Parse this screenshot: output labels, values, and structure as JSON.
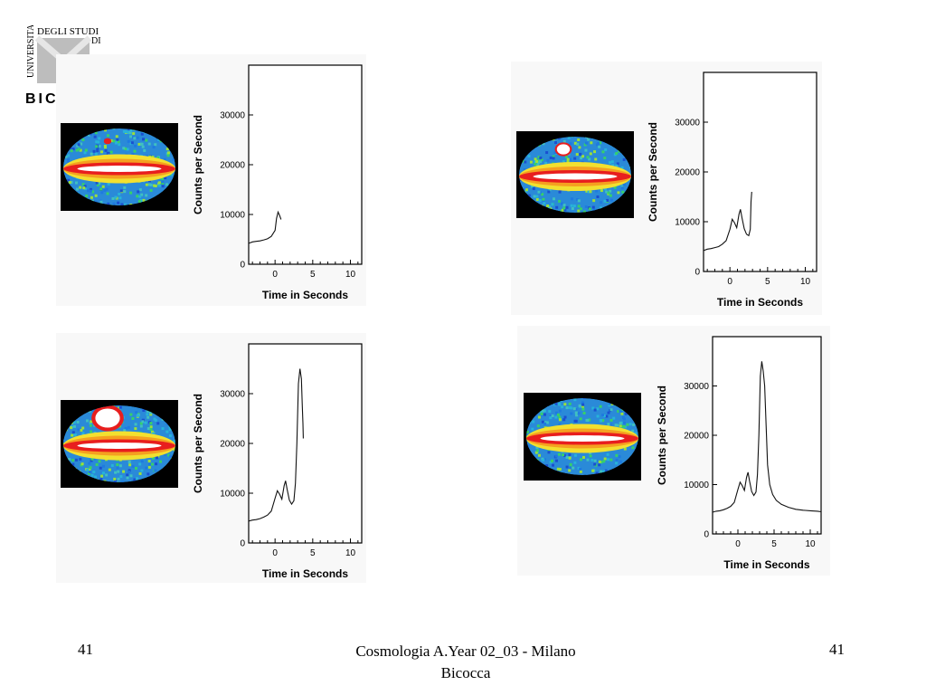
{
  "logo": {
    "text_top": "DEGLI STUDI",
    "text_side": "UNIVERSITA'",
    "text_mid": "DI",
    "text_bottom": "BIC"
  },
  "footer": {
    "left_page": "41",
    "right_page": "41",
    "center_line1": "Cosmologia A.Year 02_03 - Milano",
    "center_line2": "Bicocca"
  },
  "colors": {
    "curve": "#111111",
    "map_background": "#000000",
    "panel_background": "#f8f8f8"
  },
  "chart_data": [
    {
      "type": "line",
      "title": "",
      "xlabel": "Time in Seconds",
      "ylabel": "Counts per Second",
      "xlim": [
        -3.5,
        11.5
      ],
      "ylim": [
        0,
        40000
      ],
      "xticks": [
        0,
        5,
        10
      ],
      "yticks": [
        0,
        10000,
        20000,
        30000
      ],
      "grid": false,
      "burst_spot": "small",
      "series": [
        {
          "x": [
            -3.5,
            -3,
            -2.5,
            -2,
            -1.5,
            -1,
            -0.5,
            0,
            0.2,
            0.4,
            0.6,
            0.8
          ],
          "y": [
            4200,
            4500,
            4600,
            4700,
            4900,
            5100,
            5600,
            6800,
            9200,
            10500,
            9800,
            9000
          ]
        }
      ]
    },
    {
      "type": "line",
      "title": "",
      "xlabel": "Time in Seconds",
      "ylabel": "Counts per Second",
      "xlim": [
        -3.5,
        11.5
      ],
      "ylim": [
        0,
        40000
      ],
      "xticks": [
        0,
        5,
        10
      ],
      "yticks": [
        0,
        10000,
        20000,
        30000
      ],
      "grid": false,
      "burst_spot": "medium",
      "series": [
        {
          "x": [
            -3.5,
            -3,
            -2.5,
            -2,
            -1.5,
            -1,
            -0.5,
            0,
            0.3,
            0.6,
            0.9,
            1.2,
            1.4,
            1.6,
            1.9,
            2.2,
            2.5,
            2.7,
            2.8,
            2.9
          ],
          "y": [
            4200,
            4500,
            4600,
            4800,
            5000,
            5500,
            6200,
            8500,
            10500,
            9800,
            8800,
            11500,
            12500,
            10800,
            8600,
            7500,
            7200,
            8500,
            14000,
            16000
          ]
        }
      ]
    },
    {
      "type": "line",
      "title": "",
      "xlabel": "Time in Seconds",
      "ylabel": "Counts per Second",
      "xlim": [
        -3.5,
        11.5
      ],
      "ylim": [
        0,
        40000
      ],
      "xticks": [
        0,
        5,
        10
      ],
      "yticks": [
        0,
        10000,
        20000,
        30000
      ],
      "grid": false,
      "burst_spot": "large",
      "series": [
        {
          "x": [
            -3.5,
            -3,
            -2.5,
            -2,
            -1.5,
            -1,
            -0.5,
            0,
            0.3,
            0.6,
            0.9,
            1.2,
            1.4,
            1.6,
            1.9,
            2.2,
            2.5,
            2.7,
            2.9,
            3.1,
            3.3,
            3.5,
            3.6,
            3.7,
            3.75
          ],
          "y": [
            4400,
            4600,
            4700,
            4900,
            5200,
            5600,
            6400,
            9000,
            10500,
            9800,
            8800,
            11500,
            12500,
            10800,
            8600,
            7800,
            8500,
            12000,
            20000,
            32000,
            35000,
            33000,
            28000,
            24000,
            21000
          ]
        }
      ]
    },
    {
      "type": "line",
      "title": "",
      "xlabel": "Time in Seconds",
      "ylabel": "Counts per Second",
      "xlim": [
        -3.5,
        11.5
      ],
      "ylim": [
        0,
        40000
      ],
      "xticks": [
        0,
        5,
        10
      ],
      "yticks": [
        0,
        10000,
        20000,
        30000
      ],
      "grid": false,
      "burst_spot": "none",
      "series": [
        {
          "x": [
            -3.5,
            -3,
            -2.5,
            -2,
            -1.5,
            -1,
            -0.5,
            0,
            0.3,
            0.6,
            0.9,
            1.2,
            1.4,
            1.6,
            1.9,
            2.2,
            2.5,
            2.7,
            2.9,
            3.1,
            3.3,
            3.5,
            3.7,
            3.9,
            4.1,
            4.4,
            4.8,
            5.3,
            6,
            7,
            8,
            9,
            10,
            11,
            11.5
          ],
          "y": [
            4400,
            4600,
            4700,
            4900,
            5200,
            5600,
            6400,
            9000,
            10500,
            9800,
            8800,
            11500,
            12500,
            10800,
            8600,
            7800,
            8500,
            12000,
            20000,
            32000,
            35000,
            33000,
            30000,
            22000,
            14000,
            10000,
            8000,
            6800,
            6000,
            5400,
            5000,
            4800,
            4700,
            4600,
            4500
          ]
        }
      ]
    }
  ]
}
